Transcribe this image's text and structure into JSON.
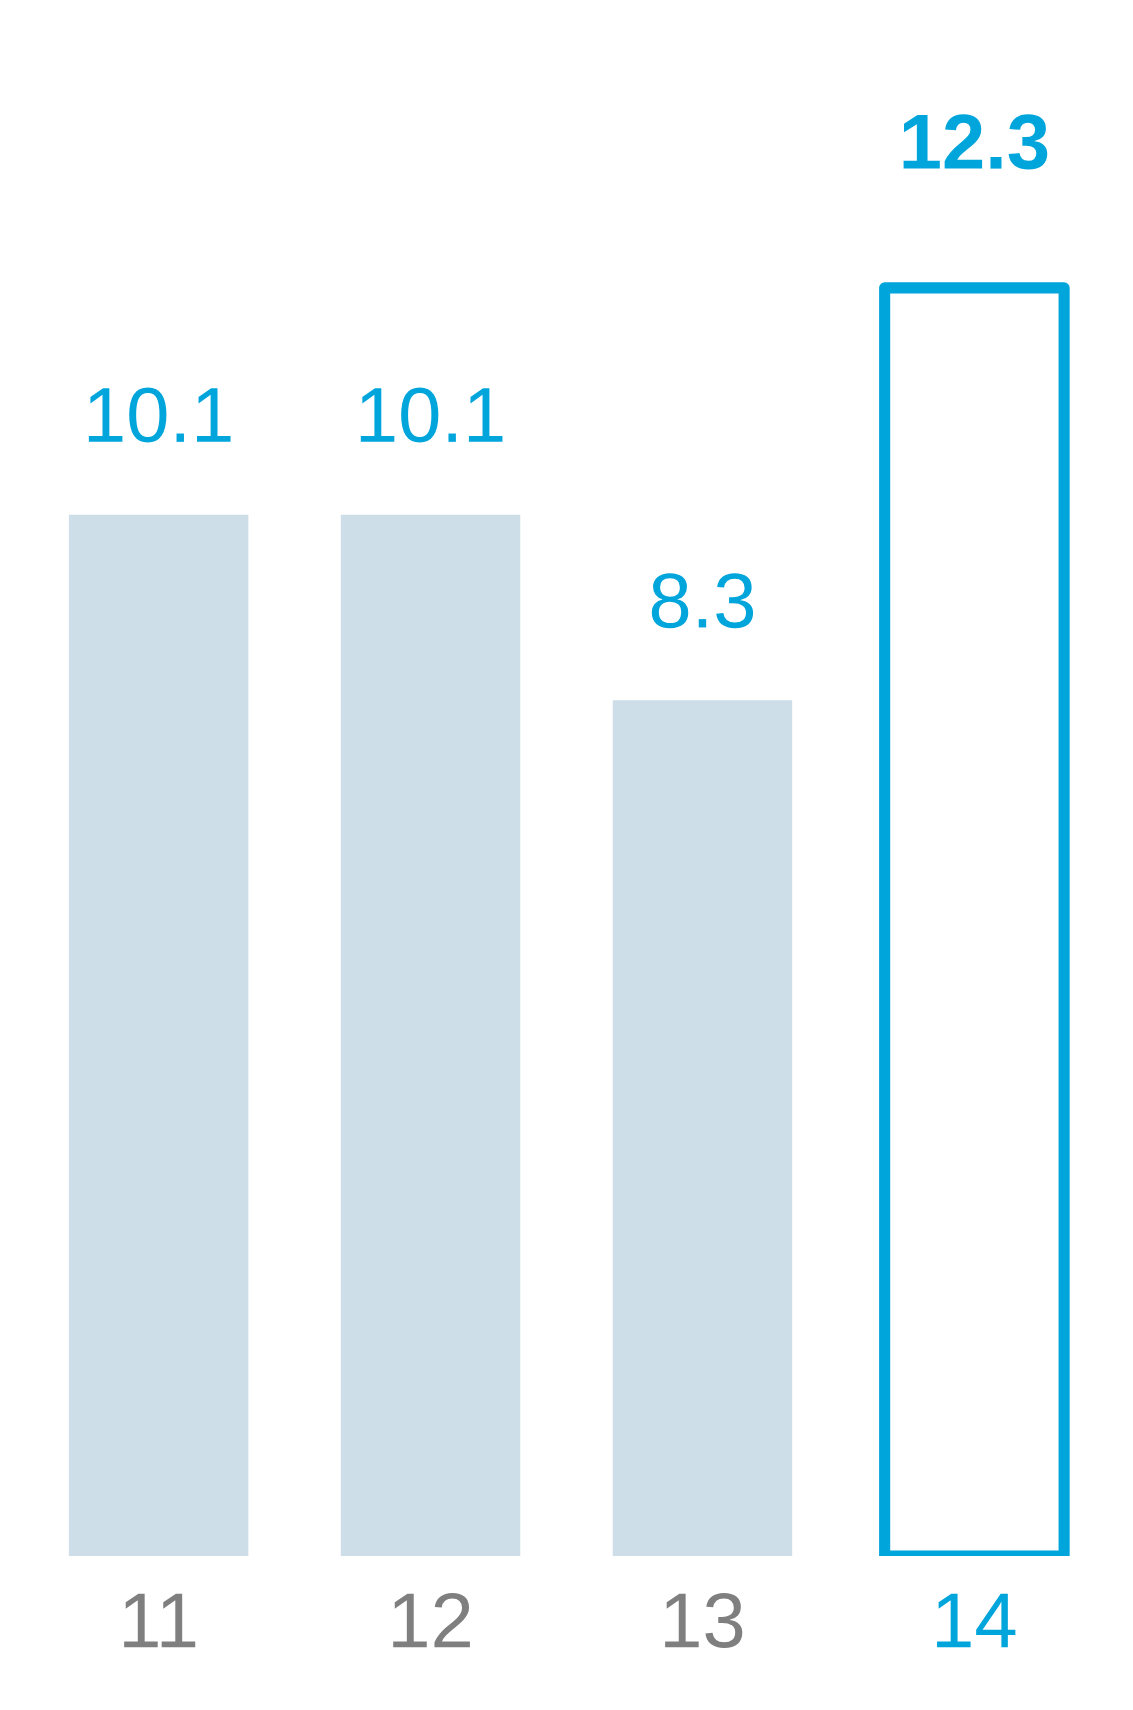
{
  "chart_data": {
    "type": "bar",
    "categories": [
      "11",
      "12",
      "13",
      "14"
    ],
    "values": [
      10.1,
      10.1,
      8.3,
      12.3
    ],
    "colors": [
      "#cddee9",
      "#cddee9",
      "#cddee9",
      "#00a5dc"
    ],
    "data_labels": true,
    "grid": false,
    "legend": false,
    "tick_labels": "x"
  }
}
